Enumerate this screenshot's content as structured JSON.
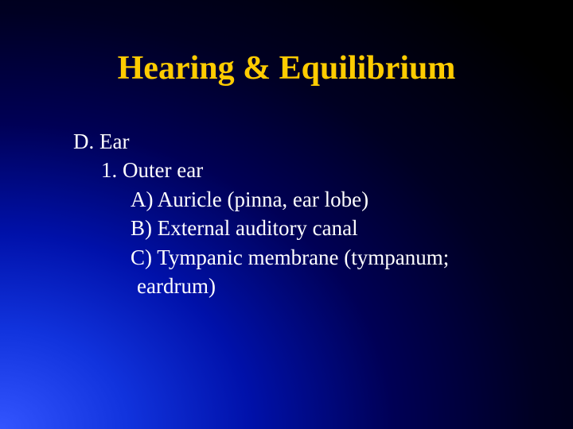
{
  "title": "Hearing & Equilibrium",
  "lines": {
    "l0": "D. Ear",
    "l1": "1. Outer ear",
    "l2": "A) Auricle (pinna, ear lobe)",
    "l3": "B) External auditory canal",
    "l4": "C) Tympanic membrane (tympanum;",
    "l5": "eardrum)"
  },
  "colors": {
    "title": "#ffcc00",
    "text": "#ffffff",
    "bullet": "#99cc33"
  },
  "fonts": {
    "title_size": 42,
    "body_size": 27,
    "family": "Times New Roman"
  }
}
